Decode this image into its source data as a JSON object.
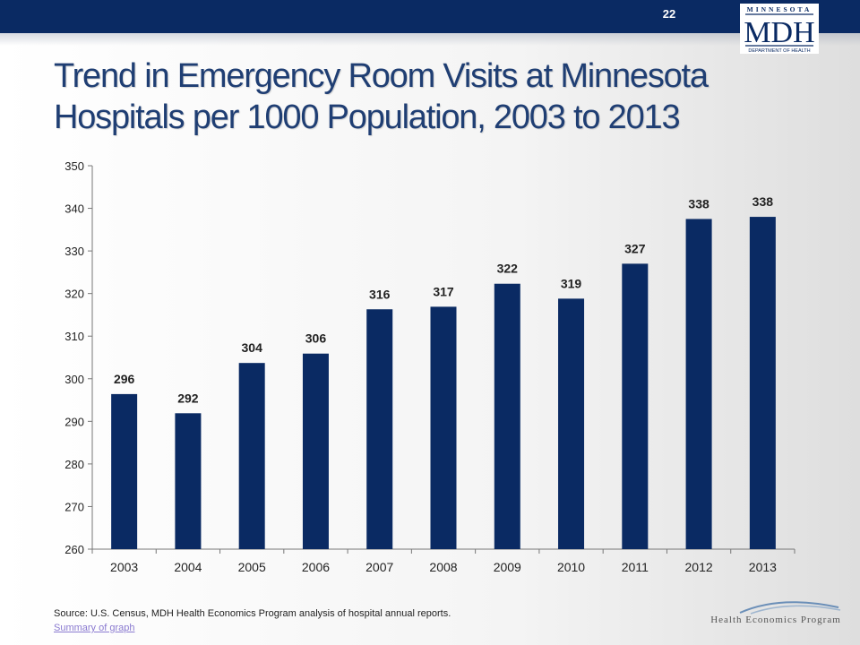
{
  "header": {
    "page_number": "22",
    "logo": {
      "state_text": "MINNESOTA",
      "acronym": "MDH",
      "department_text": "DEPARTMENT OF HEALTH",
      "color": "#0a2a63"
    }
  },
  "title": "Trend in Emergency Room Visits at Minnesota Hospitals per 1000 Population, 2003 to 2013",
  "footer": {
    "source": "Source: U.S. Census, MDH Health Economics Program analysis of hospital annual reports.",
    "summary_link": "Summary of graph",
    "program_logo_text": "Health Economics Program"
  },
  "colors": {
    "bar": "#0a2a63",
    "title": "#1f3e73",
    "header_bar": "#0a2a63"
  },
  "chart_data": {
    "type": "bar",
    "categories": [
      "2003",
      "2004",
      "2005",
      "2006",
      "2007",
      "2008",
      "2009",
      "2010",
      "2011",
      "2012",
      "2013"
    ],
    "values": [
      296.4,
      291.9,
      303.7,
      305.9,
      316.3,
      316.9,
      322.3,
      318.8,
      327.0,
      337.5,
      338.0
    ],
    "data_labels": [
      "296",
      "292",
      "304",
      "306",
      "316",
      "317",
      "322",
      "319",
      "327",
      "338",
      "338"
    ],
    "ylim": [
      260,
      350
    ],
    "yticks": [
      260,
      270,
      280,
      290,
      300,
      310,
      320,
      330,
      340,
      350
    ],
    "grid": false,
    "legend": "none"
  }
}
